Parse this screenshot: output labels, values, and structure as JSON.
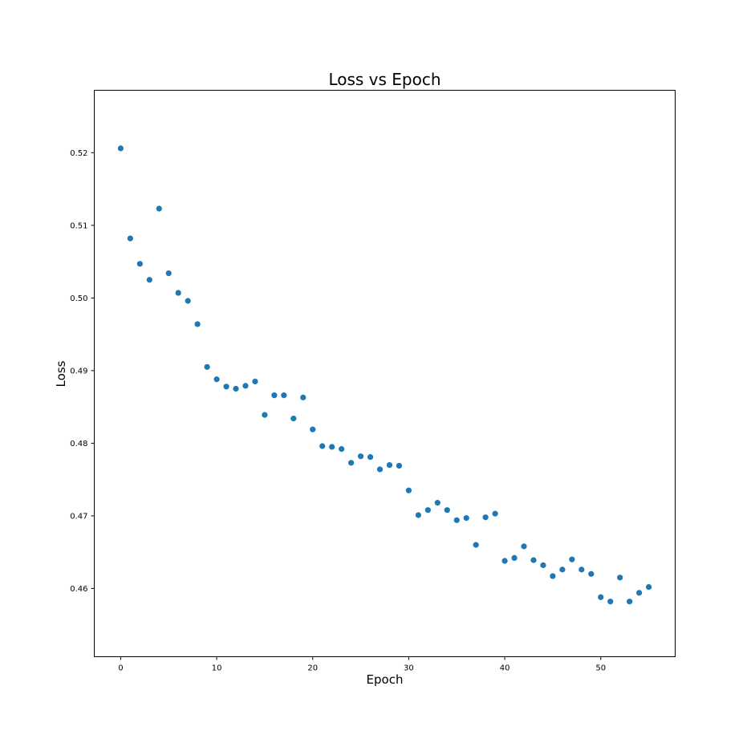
{
  "chart_data": {
    "type": "scatter",
    "title": "Loss vs Epoch",
    "xlabel": "Epoch",
    "ylabel": "Loss",
    "xlim": [
      -2.75,
      57.75
    ],
    "ylim": [
      0.4506,
      0.5286
    ],
    "xticks": [
      0,
      10,
      20,
      30,
      40,
      50
    ],
    "yticks": [
      0.46,
      0.47,
      0.48,
      0.49,
      0.5,
      0.51,
      0.52
    ],
    "ytick_labels": [
      "0.46",
      "0.47",
      "0.48",
      "0.49",
      "0.50",
      "0.51",
      "0.52"
    ],
    "grid": false,
    "marker_color": "#1f77b4",
    "series": [
      {
        "x": [
          0,
          1,
          2,
          3,
          4,
          5,
          6,
          7,
          8,
          9,
          10,
          11,
          12,
          13,
          14,
          15,
          16,
          17,
          18,
          19,
          20,
          21,
          22,
          23,
          24,
          25,
          26,
          27,
          28,
          29,
          30,
          31,
          32,
          33,
          34,
          35,
          36,
          37,
          38,
          39,
          40,
          41,
          42,
          43,
          44,
          45,
          46,
          47,
          48,
          49,
          50,
          51,
          52,
          53,
          54,
          55
        ],
        "y": [
          0.5206,
          0.5082,
          0.5047,
          0.5025,
          0.5123,
          0.5034,
          0.5007,
          0.4996,
          0.4964,
          0.4905,
          0.4888,
          0.4878,
          0.4875,
          0.4879,
          0.4885,
          0.4839,
          0.4866,
          0.4866,
          0.4834,
          0.4863,
          0.4819,
          0.4796,
          0.4795,
          0.4792,
          0.4773,
          0.4782,
          0.4781,
          0.4764,
          0.477,
          0.4769,
          0.4735,
          0.4701,
          0.4708,
          0.4718,
          0.4708,
          0.4694,
          0.4697,
          0.466,
          0.4698,
          0.4703,
          0.4638,
          0.4642,
          0.4658,
          0.4639,
          0.4632,
          0.4617,
          0.4626,
          0.464,
          0.4626,
          0.462,
          0.4588,
          0.4582,
          0.4615,
          0.4582,
          0.4594,
          0.4602
        ]
      }
    ]
  }
}
